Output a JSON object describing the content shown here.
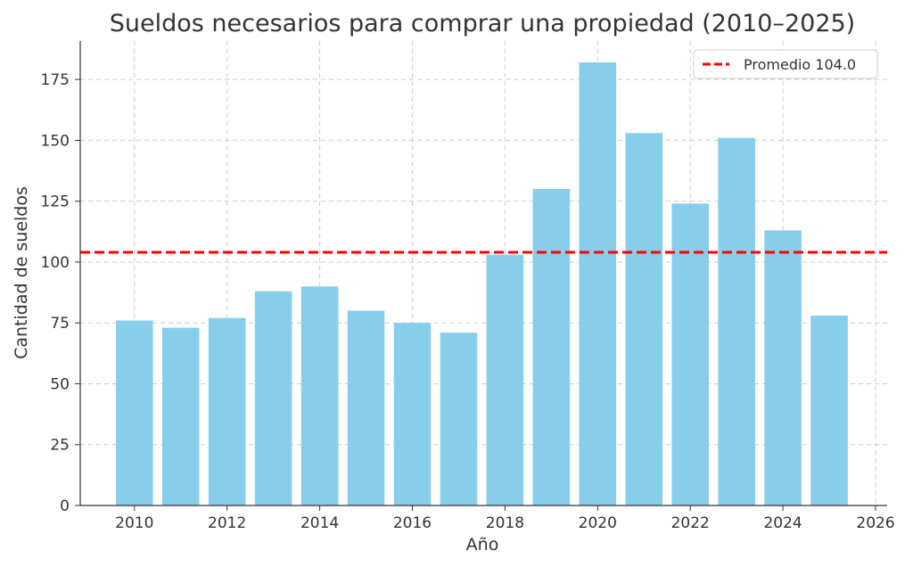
{
  "chart_data": {
    "type": "bar",
    "title": "Sueldos necesarios para comprar una propiedad (2010–2025)",
    "xlabel": "Año",
    "ylabel": "Cantidad de sueldos",
    "categories": [
      2010,
      2011,
      2012,
      2013,
      2014,
      2015,
      2016,
      2017,
      2018,
      2019,
      2020,
      2021,
      2022,
      2023,
      2024,
      2025
    ],
    "values": [
      76,
      73,
      77,
      88,
      90,
      80,
      75,
      71,
      103,
      130,
      182,
      153,
      124,
      151,
      113,
      78
    ],
    "xlim": [
      2008.83,
      2026.25
    ],
    "ylim": [
      0,
      190.8
    ],
    "xticks": [
      2010,
      2012,
      2014,
      2016,
      2018,
      2020,
      2022,
      2024,
      2026
    ],
    "yticks": [
      0,
      25,
      50,
      75,
      100,
      125,
      150,
      175
    ],
    "grid": true,
    "bar_color": "#87ceeb",
    "average": {
      "value": 104.0,
      "label": "Promedio 104.0",
      "color": "#ff0000",
      "style": "dashed"
    },
    "legend_position": "top-right"
  }
}
